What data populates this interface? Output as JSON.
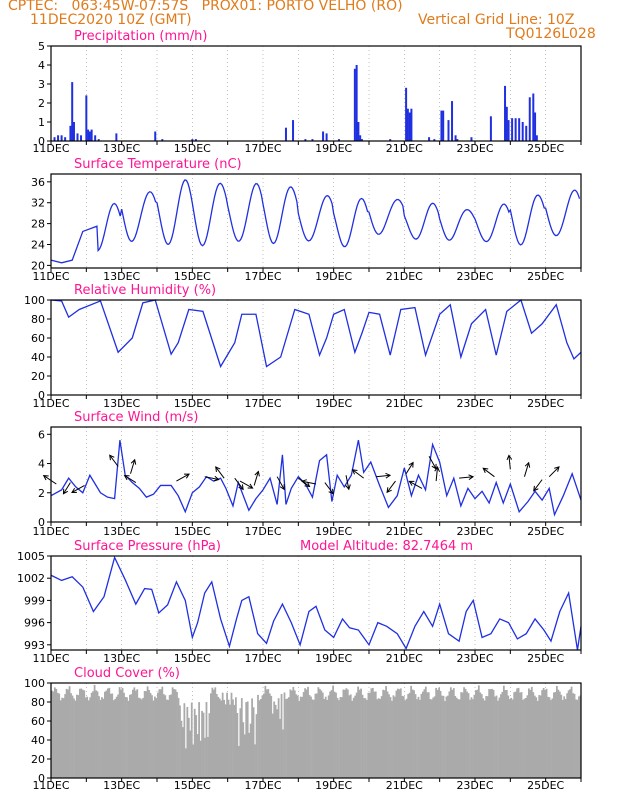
{
  "header": {
    "line1_left": "CPTEC:   063:45W-07:57S   PROX01: PORTO VELHO (RO)",
    "line2_left": "11DEC2020 10Z (GMT)",
    "line2_right": "Vertical Grid Line: 10Z",
    "line3_right": "TQ0126L028",
    "color": "#e07b1c"
  },
  "colors": {
    "title": "#ff1493",
    "series": "#2030e0",
    "cloud": "#aaaaaa",
    "axis": "#000000",
    "grid": "#9a9a9a"
  },
  "x_axis": {
    "start_day": 11,
    "end_day": 26,
    "tick_labels": [
      "11DEC",
      "13DEC",
      "15DEC",
      "17DEC",
      "19DEC",
      "21DEC",
      "23DEC",
      "25DEC"
    ]
  },
  "chart_data": [
    {
      "type": "bar",
      "title": "Precipitation (mm/h)",
      "ylim": [
        0,
        5
      ],
      "yticks": [
        "0",
        "1",
        "2",
        "3",
        "4",
        "5"
      ],
      "note": "hourly precipitation bars",
      "values_sparse": [
        [
          11.1,
          0.2
        ],
        [
          11.2,
          0.3
        ],
        [
          11.3,
          0.3
        ],
        [
          11.4,
          0.2
        ],
        [
          11.55,
          0.8
        ],
        [
          11.6,
          3.1
        ],
        [
          11.65,
          1.0
        ],
        [
          11.75,
          0.4
        ],
        [
          11.85,
          0.3
        ],
        [
          12.0,
          2.4
        ],
        [
          12.05,
          0.6
        ],
        [
          12.1,
          0.5
        ],
        [
          12.15,
          0.6
        ],
        [
          12.25,
          0.3
        ],
        [
          12.35,
          0.1
        ],
        [
          12.85,
          0.4
        ],
        [
          13.95,
          0.5
        ],
        [
          14.15,
          0.1
        ],
        [
          15.0,
          0.1
        ],
        [
          15.1,
          0.1
        ],
        [
          17.65,
          0.7
        ],
        [
          17.85,
          1.1
        ],
        [
          18.2,
          0.1
        ],
        [
          18.4,
          0.1
        ],
        [
          18.7,
          0.5
        ],
        [
          18.8,
          0.4
        ],
        [
          19.15,
          0.1
        ],
        [
          19.6,
          3.8
        ],
        [
          19.65,
          4.0
        ],
        [
          19.7,
          1.0
        ],
        [
          19.75,
          0.3
        ],
        [
          19.8,
          0.1
        ],
        [
          20.6,
          0.1
        ],
        [
          21.05,
          2.8
        ],
        [
          21.1,
          1.7
        ],
        [
          21.15,
          1.5
        ],
        [
          21.2,
          1.7
        ],
        [
          21.7,
          0.2
        ],
        [
          21.85,
          0.1
        ],
        [
          22.05,
          1.6
        ],
        [
          22.1,
          1.6
        ],
        [
          22.25,
          1.1
        ],
        [
          22.35,
          2.1
        ],
        [
          22.45,
          0.3
        ],
        [
          22.5,
          0.1
        ],
        [
          22.9,
          0.2
        ],
        [
          23.45,
          1.3
        ],
        [
          23.85,
          2.9
        ],
        [
          23.9,
          1.8
        ],
        [
          23.95,
          1.1
        ],
        [
          24.05,
          1.2
        ],
        [
          24.15,
          1.2
        ],
        [
          24.25,
          1.2
        ],
        [
          24.35,
          1.0
        ],
        [
          24.45,
          0.8
        ],
        [
          24.55,
          2.3
        ],
        [
          24.65,
          2.5
        ],
        [
          24.7,
          1.5
        ],
        [
          24.75,
          0.3
        ]
      ]
    },
    {
      "type": "line",
      "title": "Surface Temperature (nC)",
      "ylim": [
        19.5,
        37.5
      ],
      "yticks": [
        "20",
        "24",
        "28",
        "32",
        "36"
      ],
      "amp": [
        2.5,
        4.2,
        5.0,
        6.0,
        6.0,
        5.6,
        5.2,
        4.6,
        4.3,
        3.6,
        3.2,
        3.0,
        3.6,
        4.6,
        4.6
      ],
      "peak_max": [
        null,
        31.5,
        34.5,
        36.0,
        36.0,
        35.5,
        35.0,
        33.5,
        32.5,
        33.0,
        31.5,
        31.0,
        31.5,
        33.5,
        34.5
      ],
      "initial_rise": [
        [
          11.0,
          21.0
        ],
        [
          11.3,
          20.5
        ],
        [
          11.6,
          21.0
        ],
        [
          11.9,
          26.5
        ],
        [
          12.3,
          27.5
        ]
      ]
    },
    {
      "type": "line",
      "title": "Relative Humidity (%)",
      "ylim": [
        0,
        100
      ],
      "yticks": [
        "0",
        "20",
        "40",
        "60",
        "80",
        "100"
      ],
      "points": [
        [
          11.0,
          100
        ],
        [
          11.3,
          99
        ],
        [
          11.5,
          82
        ],
        [
          11.8,
          90
        ],
        [
          12.4,
          99
        ],
        [
          12.9,
          45
        ],
        [
          13.3,
          60
        ],
        [
          13.6,
          97
        ],
        [
          13.95,
          100
        ],
        [
          14.4,
          43
        ],
        [
          14.6,
          55
        ],
        [
          14.9,
          90
        ],
        [
          15.3,
          88
        ],
        [
          15.8,
          30
        ],
        [
          16.2,
          55
        ],
        [
          16.4,
          85
        ],
        [
          16.8,
          85
        ],
        [
          17.1,
          30
        ],
        [
          17.5,
          40
        ],
        [
          17.9,
          90
        ],
        [
          18.3,
          85
        ],
        [
          18.6,
          42
        ],
        [
          18.8,
          60
        ],
        [
          19.0,
          85
        ],
        [
          19.3,
          90
        ],
        [
          19.6,
          45
        ],
        [
          19.8,
          65
        ],
        [
          20.0,
          87
        ],
        [
          20.3,
          85
        ],
        [
          20.6,
          42
        ],
        [
          20.9,
          90
        ],
        [
          21.3,
          92
        ],
        [
          21.6,
          42
        ],
        [
          22.0,
          85
        ],
        [
          22.3,
          95
        ],
        [
          22.6,
          40
        ],
        [
          22.9,
          75
        ],
        [
          23.3,
          90
        ],
        [
          23.6,
          42
        ],
        [
          23.9,
          88
        ],
        [
          24.3,
          100
        ],
        [
          24.6,
          65
        ],
        [
          24.9,
          75
        ],
        [
          25.3,
          95
        ],
        [
          25.6,
          55
        ],
        [
          25.8,
          38
        ],
        [
          26.0,
          45
        ]
      ]
    },
    {
      "type": "line",
      "title": "Surface Wind (m/s)",
      "ylim": [
        0,
        6.5
      ],
      "yticks": [
        "0",
        "2",
        "4",
        "6"
      ],
      "points": [
        [
          11.0,
          1.8
        ],
        [
          11.3,
          2.2
        ],
        [
          11.5,
          3.0
        ],
        [
          11.7,
          2.4
        ],
        [
          11.9,
          2.0
        ],
        [
          12.1,
          3.2
        ],
        [
          12.4,
          2.0
        ],
        [
          12.6,
          1.7
        ],
        [
          12.8,
          1.6
        ],
        [
          12.95,
          5.6
        ],
        [
          13.1,
          3.2
        ],
        [
          13.3,
          2.7
        ],
        [
          13.5,
          2.3
        ],
        [
          13.7,
          1.7
        ],
        [
          13.9,
          1.9
        ],
        [
          14.1,
          2.5
        ],
        [
          14.4,
          2.5
        ],
        [
          14.6,
          1.8
        ],
        [
          14.8,
          0.7
        ],
        [
          15.0,
          2.0
        ],
        [
          15.2,
          2.4
        ],
        [
          15.4,
          3.1
        ],
        [
          15.6,
          2.8
        ],
        [
          15.8,
          3.0
        ],
        [
          15.95,
          2.3
        ],
        [
          16.15,
          1.1
        ],
        [
          16.3,
          2.7
        ],
        [
          16.6,
          0.8
        ],
        [
          16.8,
          1.6
        ],
        [
          17.0,
          2.2
        ],
        [
          17.2,
          3.0
        ],
        [
          17.4,
          1.2
        ],
        [
          17.55,
          4.6
        ],
        [
          17.65,
          1.2
        ],
        [
          17.8,
          2.3
        ],
        [
          18.0,
          3.1
        ],
        [
          18.2,
          2.6
        ],
        [
          18.4,
          1.7
        ],
        [
          18.6,
          4.2
        ],
        [
          18.8,
          4.6
        ],
        [
          18.95,
          1.4
        ],
        [
          19.1,
          3.2
        ],
        [
          19.3,
          2.4
        ],
        [
          19.5,
          3.2
        ],
        [
          19.7,
          5.6
        ],
        [
          19.85,
          3.4
        ],
        [
          20.05,
          4.1
        ],
        [
          20.3,
          2.5
        ],
        [
          20.55,
          1.0
        ],
        [
          20.8,
          1.8
        ],
        [
          21.0,
          3.7
        ],
        [
          21.2,
          1.8
        ],
        [
          21.4,
          3.2
        ],
        [
          21.6,
          2.2
        ],
        [
          21.8,
          5.3
        ],
        [
          22.0,
          4.1
        ],
        [
          22.2,
          1.8
        ],
        [
          22.4,
          3.0
        ],
        [
          22.6,
          1.1
        ],
        [
          22.8,
          2.3
        ],
        [
          23.0,
          1.6
        ],
        [
          23.2,
          2.1
        ],
        [
          23.4,
          1.3
        ],
        [
          23.6,
          2.7
        ],
        [
          23.8,
          1.3
        ],
        [
          24.0,
          2.6
        ],
        [
          24.25,
          0.7
        ],
        [
          24.5,
          1.4
        ],
        [
          24.7,
          2.1
        ],
        [
          24.9,
          1.5
        ],
        [
          25.1,
          2.3
        ],
        [
          25.25,
          0.5
        ],
        [
          25.5,
          1.8
        ],
        [
          25.75,
          3.3
        ],
        [
          26.0,
          1.5
        ]
      ],
      "arrows": [
        [
          11.15,
          2.6,
          -0.9,
          0.6
        ],
        [
          11.55,
          2.7,
          -0.5,
          -0.8
        ],
        [
          11.95,
          2.5,
          -0.9,
          -0.5
        ],
        [
          12.9,
          3.8,
          -0.6,
          0.8
        ],
        [
          13.25,
          3.3,
          0.3,
          1.0
        ],
        [
          13.4,
          2.7,
          -0.8,
          0.5
        ],
        [
          14.55,
          2.8,
          0.9,
          0.5
        ],
        [
          15.35,
          3.1,
          1.0,
          -0.2
        ],
        [
          15.9,
          3.0,
          -0.6,
          0.8
        ],
        [
          16.2,
          3.0,
          0.6,
          -0.8
        ],
        [
          16.35,
          2.8,
          0.9,
          -0.5
        ],
        [
          16.75,
          2.5,
          0.3,
          1.0
        ],
        [
          17.4,
          3.1,
          0.5,
          -0.9
        ],
        [
          18.0,
          3.0,
          0.8,
          -0.6
        ],
        [
          18.5,
          2.6,
          -1.0,
          0.2
        ],
        [
          18.75,
          2.7,
          0.6,
          -0.8
        ],
        [
          19.35,
          3.2,
          0.2,
          -1.0
        ],
        [
          19.85,
          3.0,
          -0.8,
          0.6
        ],
        [
          20.2,
          3.1,
          1.0,
          0.1
        ],
        [
          20.75,
          2.8,
          -0.6,
          -0.8
        ],
        [
          21.05,
          3.3,
          0.5,
          0.8
        ],
        [
          21.5,
          2.3,
          -0.9,
          0.5
        ],
        [
          21.7,
          4.5,
          0.5,
          -0.9
        ],
        [
          21.9,
          2.8,
          0.1,
          1.0
        ],
        [
          22.55,
          3.0,
          1.0,
          0.1
        ],
        [
          23.55,
          3.1,
          -0.8,
          0.6
        ],
        [
          24.0,
          3.6,
          -0.1,
          1.0
        ],
        [
          24.4,
          3.1,
          0.3,
          1.0
        ],
        [
          24.9,
          2.9,
          -0.6,
          -0.8
        ],
        [
          25.1,
          3.1,
          0.7,
          0.7
        ]
      ]
    },
    {
      "type": "line",
      "title": "Surface Pressure (hPa)",
      "annotation": "Model Altitude: 82.7464 m",
      "ylim": [
        992.3,
        1005
      ],
      "yticks": [
        "993",
        "996",
        "999",
        "1002",
        "1005"
      ],
      "points": [
        [
          11.0,
          1002.4
        ],
        [
          11.3,
          1001.7
        ],
        [
          11.6,
          1002.2
        ],
        [
          11.9,
          1000.8
        ],
        [
          12.2,
          997.5
        ],
        [
          12.5,
          999.5
        ],
        [
          12.8,
          1004.8
        ],
        [
          13.1,
          1001.8
        ],
        [
          13.4,
          998.5
        ],
        [
          13.65,
          1000.6
        ],
        [
          13.85,
          1000.5
        ],
        [
          14.05,
          997.3
        ],
        [
          14.3,
          998.4
        ],
        [
          14.55,
          1001.5
        ],
        [
          14.8,
          999.0
        ],
        [
          15.0,
          994.0
        ],
        [
          15.15,
          996.0
        ],
        [
          15.35,
          1000.0
        ],
        [
          15.55,
          1001.5
        ],
        [
          15.8,
          996.5
        ],
        [
          16.05,
          992.8
        ],
        [
          16.25,
          996.5
        ],
        [
          16.4,
          999.0
        ],
        [
          16.6,
          999.5
        ],
        [
          16.85,
          994.5
        ],
        [
          17.1,
          993.2
        ],
        [
          17.3,
          996.2
        ],
        [
          17.55,
          998.5
        ],
        [
          17.8,
          996.0
        ],
        [
          18.05,
          993.0
        ],
        [
          18.3,
          997.5
        ],
        [
          18.5,
          998.2
        ],
        [
          18.75,
          995.0
        ],
        [
          19.0,
          994.0
        ],
        [
          19.25,
          996.5
        ],
        [
          19.45,
          995.3
        ],
        [
          19.7,
          995.0
        ],
        [
          20.0,
          993.0
        ],
        [
          20.25,
          996.0
        ],
        [
          20.5,
          995.5
        ],
        [
          20.8,
          994.5
        ],
        [
          21.05,
          992.5
        ],
        [
          21.3,
          995.5
        ],
        [
          21.55,
          997.5
        ],
        [
          21.8,
          995.5
        ],
        [
          22.0,
          998.5
        ],
        [
          22.25,
          994.5
        ],
        [
          22.55,
          993.5
        ],
        [
          22.75,
          997.5
        ],
        [
          22.95,
          999.0
        ],
        [
          23.2,
          994.0
        ],
        [
          23.45,
          994.5
        ],
        [
          23.7,
          996.5
        ],
        [
          23.95,
          996.0
        ],
        [
          24.2,
          993.8
        ],
        [
          24.45,
          994.5
        ],
        [
          24.7,
          996.5
        ],
        [
          24.95,
          995.0
        ],
        [
          25.15,
          993.5
        ],
        [
          25.4,
          997.5
        ],
        [
          25.65,
          1000.0
        ],
        [
          25.9,
          992.3
        ],
        [
          26.0,
          995.5
        ]
      ]
    },
    {
      "type": "bar",
      "title": "Cloud Cover (%)",
      "ylim": [
        0,
        100
      ],
      "yticks": [
        "0",
        "20",
        "40",
        "60",
        "80",
        "100"
      ],
      "note": "hourly cloud cover percentage, mostly 85-98% with deep drops around 14.6-15.5, 16.2-16.8 and 17.2-17.6"
    }
  ]
}
